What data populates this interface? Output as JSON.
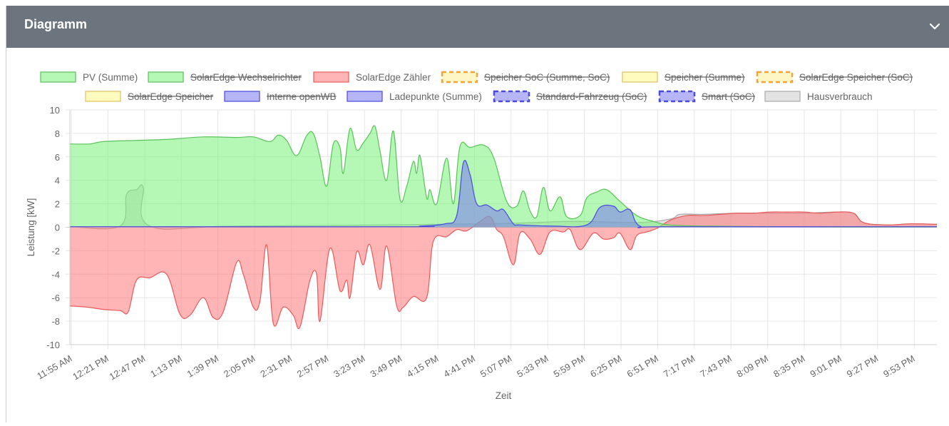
{
  "header": {
    "title": "Diagramm"
  },
  "chart_data": {
    "type": "area",
    "xlabel": "Zeit",
    "ylabel": "Leistung [kW]",
    "ylim": [
      -10,
      10
    ],
    "yticks": [
      10,
      8,
      6,
      4,
      2,
      0,
      -2,
      -4,
      -6,
      -8,
      -10
    ],
    "x_tick_labels": [
      "11:55 AM",
      "12:21 PM",
      "12:47 PM",
      "1:13 PM",
      "1:39 PM",
      "2:05 PM",
      "2:31 PM",
      "2:57 PM",
      "3:23 PM",
      "3:49 PM",
      "4:15 PM",
      "4:41 PM",
      "5:07 PM",
      "5:33 PM",
      "5:59 PM",
      "6:25 PM",
      "6:51 PM",
      "7:17 PM",
      "7:43 PM",
      "8:09 PM",
      "8:35 PM",
      "9:01 PM",
      "9:27 PM",
      "9:53 PM"
    ],
    "x_minutes": [
      0,
      10,
      20,
      30,
      35,
      40,
      45,
      50,
      60,
      70,
      75,
      80,
      90,
      95,
      100,
      105,
      108,
      110,
      114,
      118,
      122,
      126,
      130,
      132,
      136,
      138,
      140,
      142,
      144,
      146,
      148,
      152,
      154,
      156,
      158,
      162,
      164,
      166,
      168,
      170,
      172,
      174,
      176,
      178,
      180,
      183,
      186,
      190,
      192,
      194,
      196,
      198,
      201,
      204,
      206,
      208,
      212,
      216,
      218,
      220,
      222,
      226,
      230,
      236,
      240,
      244,
      248,
      252,
      256,
      258,
      260,
      262,
      264,
      268,
      270,
      272,
      274,
      276,
      278,
      280,
      284,
      288,
      292,
      296,
      300,
      310,
      320,
      330,
      340,
      350,
      360,
      370,
      380,
      390,
      400,
      410,
      420,
      430,
      440,
      450,
      460,
      470,
      480,
      490,
      500,
      510,
      520,
      530,
      540,
      550,
      560,
      570,
      580,
      590,
      600,
      610,
      620,
      630,
      640,
      650,
      660,
      670,
      680,
      690,
      700,
      710,
      720,
      730,
      740,
      750,
      760,
      770,
      780,
      790,
      800,
      810,
      820,
      830,
      840,
      850,
      860,
      870,
      880,
      890,
      900,
      910,
      920,
      930,
      940,
      950,
      960,
      970,
      980,
      990,
      1000,
      1010,
      1020,
      1030,
      1040,
      1050,
      1060,
      1070,
      1080,
      1090,
      1100,
      1110,
      1120,
      1130,
      1140,
      1150,
      1160,
      1170,
      1180,
      1190,
      1200,
      1210,
      1220,
      1230,
      1240,
      1250,
      1260,
      1270,
      1280,
      1290,
      1300,
      1310,
      1320,
      1330,
      1340,
      1350,
      1360,
      1370,
      1380,
      1390,
      1400,
      1410,
      1420,
      1430,
      1440,
      1450,
      1460,
      1470,
      1480,
      1490,
      1500,
      1510,
      1520,
      1530,
      1540,
      1550,
      1560,
      1570,
      1580,
      1590,
      1600,
      1610,
      1620,
      1630,
      1640,
      1650,
      1660,
      1670,
      1680,
      1690,
      1700,
      1710,
      1720,
      1730,
      1740,
      1750,
      1760,
      1770,
      1780,
      1790,
      1800,
      1810,
      1820,
      1830,
      1840,
      1850,
      1860,
      1870,
      1880,
      1890,
      1900,
      1910,
      1920,
      1930,
      1940,
      1950,
      1960,
      1970,
      1980,
      1990,
      2000,
      2010,
      2020,
      2030,
      2040,
      2050,
      2060,
      2070,
      2080,
      2090,
      2100,
      2110,
      2120,
      2130,
      2140,
      2150,
      2160,
      2170,
      2180,
      2190,
      2200,
      2210,
      2220,
      2230,
      2240,
      2250,
      2260,
      2270,
      2280,
      2290,
      2300,
      2310,
      2320,
      2330,
      2340,
      2350,
      2360,
      2370,
      2380,
      2390,
      2400,
      2410,
      2420,
      2430,
      2440,
      2450,
      2460,
      2470,
      2480,
      2490,
      2500,
      2510,
      2520,
      2530,
      2540,
      2550,
      2560,
      2570,
      2580,
      2590,
      2600,
      2610,
      2620
    ],
    "series": [
      {
        "name": "PV (Summe)",
        "color": "#5ac25a",
        "fill": "rgba(120,240,120,0.55)",
        "hidden": false,
        "style": "solid",
        "points": [
          [
            0,
            7.1
          ],
          [
            12,
            7.1
          ],
          [
            20,
            7.3
          ],
          [
            40,
            7.4
          ],
          [
            60,
            7.5
          ],
          [
            80,
            7.7
          ],
          [
            100,
            7.65
          ],
          [
            110,
            7.7
          ],
          [
            120,
            7.3
          ],
          [
            125,
            7.85
          ],
          [
            130,
            7.4
          ],
          [
            136,
            6.1
          ],
          [
            142,
            7.8
          ],
          [
            146,
            8.0
          ],
          [
            150,
            6.0
          ],
          [
            154,
            3.5
          ],
          [
            158,
            7.1
          ],
          [
            162,
            6.8
          ],
          [
            164,
            4.6
          ],
          [
            168,
            8.4
          ],
          [
            172,
            6.6
          ],
          [
            176,
            7.2
          ],
          [
            180,
            8.0
          ],
          [
            183,
            8.6
          ],
          [
            186,
            6.5
          ],
          [
            190,
            4.0
          ],
          [
            194,
            8.2
          ],
          [
            198,
            2.4
          ],
          [
            202,
            3.5
          ],
          [
            206,
            5.6
          ],
          [
            208,
            4.6
          ],
          [
            210,
            6.1
          ],
          [
            214,
            2.5
          ],
          [
            216,
            3.2
          ],
          [
            220,
            2.0
          ],
          [
            226,
            5.9
          ],
          [
            230,
            2.0
          ],
          [
            234,
            6.9
          ],
          [
            240,
            6.8
          ],
          [
            248,
            7.0
          ],
          [
            254,
            6.0
          ],
          [
            262,
            2.2
          ],
          [
            268,
            1.8
          ],
          [
            272,
            3.1
          ],
          [
            276,
            1.4
          ],
          [
            280,
            0.9
          ],
          [
            284,
            3.4
          ],
          [
            288,
            1.4
          ],
          [
            294,
            2.6
          ],
          [
            298,
            0.9
          ],
          [
            306,
            1.0
          ],
          [
            310,
            2.5
          ],
          [
            316,
            3.0
          ],
          [
            322,
            3.2
          ],
          [
            330,
            2.2
          ],
          [
            340,
            1.0
          ],
          [
            350,
            0.5
          ],
          [
            360,
            0.2
          ],
          [
            380,
            0.1
          ],
          [
            420,
            0.05
          ],
          [
            480,
            0.02
          ],
          [
            520,
            0.02
          ]
        ]
      },
      {
        "name": "SolarEdge Wechselrichter",
        "color": "#5ac25a",
        "fill": "rgba(120,240,120,0.55)",
        "hidden": true,
        "style": "solid",
        "points": []
      },
      {
        "name": "SolarEdge Zähler",
        "color": "#e85a5a",
        "fill": "rgba(255,120,120,0.55)",
        "hidden": false,
        "style": "solid",
        "points": [
          [
            0,
            -6.7
          ],
          [
            10,
            -6.8
          ],
          [
            20,
            -7.0
          ],
          [
            30,
            -7.1
          ],
          [
            35,
            -7.2
          ],
          [
            40,
            -4.5
          ],
          [
            48,
            -4.3
          ],
          [
            58,
            -4.0
          ],
          [
            66,
            -7.4
          ],
          [
            72,
            -7.5
          ],
          [
            80,
            -6.0
          ],
          [
            86,
            -7.7
          ],
          [
            92,
            -7.2
          ],
          [
            100,
            -3.0
          ],
          [
            104,
            -4.0
          ],
          [
            110,
            -6.8
          ],
          [
            114,
            -6.3
          ],
          [
            118,
            -1.5
          ],
          [
            122,
            -8.2
          ],
          [
            128,
            -6.8
          ],
          [
            134,
            -7.5
          ],
          [
            138,
            -8.5
          ],
          [
            144,
            -4.5
          ],
          [
            148,
            -4.0
          ],
          [
            150,
            -8.0
          ],
          [
            156,
            -1.8
          ],
          [
            162,
            -5.4
          ],
          [
            166,
            -4.5
          ],
          [
            168,
            -6.0
          ],
          [
            172,
            -2.1
          ],
          [
            176,
            -3.2
          ],
          [
            180,
            -1.5
          ],
          [
            186,
            -5.3
          ],
          [
            190,
            -1.6
          ],
          [
            196,
            -6.7
          ],
          [
            200,
            -6.8
          ],
          [
            206,
            -5.9
          ],
          [
            214,
            -6.0
          ],
          [
            218,
            -1.2
          ],
          [
            226,
            -0.8
          ],
          [
            232,
            -0.2
          ],
          [
            238,
            -0.3
          ],
          [
            246,
            0.5
          ],
          [
            252,
            0.9
          ],
          [
            256,
            -0.2
          ],
          [
            260,
            -0.8
          ],
          [
            266,
            -3.2
          ],
          [
            270,
            -0.5
          ],
          [
            276,
            -1.0
          ],
          [
            282,
            -2.3
          ],
          [
            288,
            -0.4
          ],
          [
            296,
            -0.4
          ],
          [
            300,
            -0.2
          ],
          [
            306,
            -1.9
          ],
          [
            314,
            -0.5
          ],
          [
            320,
            -1.0
          ],
          [
            326,
            -0.9
          ],
          [
            330,
            -0.5
          ],
          [
            336,
            -1.9
          ],
          [
            340,
            -0.7
          ],
          [
            346,
            -0.4
          ],
          [
            352,
            -0.1
          ],
          [
            360,
            0.6
          ],
          [
            370,
            1.0
          ],
          [
            380,
            1.0
          ],
          [
            390,
            1.1
          ],
          [
            400,
            1.2
          ],
          [
            410,
            1.2
          ],
          [
            420,
            1.3
          ],
          [
            430,
            1.3
          ],
          [
            440,
            1.3
          ],
          [
            450,
            1.2
          ],
          [
            460,
            1.3
          ],
          [
            470,
            1.2
          ],
          [
            476,
            0.4
          ],
          [
            490,
            0.2
          ],
          [
            505,
            0.3
          ],
          [
            520,
            0.25
          ]
        ]
      },
      {
        "name": "Speicher SoC (Summe, SoC)",
        "color": "#f2a33a",
        "fill": "rgba(255,240,160,0.6)",
        "hidden": true,
        "style": "dashed",
        "points": []
      },
      {
        "name": "Speicher (Summe)",
        "color": "#e0c060",
        "fill": "rgba(255,250,170,0.75)",
        "hidden": true,
        "style": "solid",
        "points": []
      },
      {
        "name": "SolarEdge Speicher (SoC)",
        "color": "#f2a33a",
        "fill": "rgba(255,240,160,0.6)",
        "hidden": true,
        "style": "dashed",
        "points": []
      },
      {
        "name": "SolarEdge Speicher",
        "color": "#e0c060",
        "fill": "rgba(255,250,170,0.75)",
        "hidden": true,
        "style": "solid",
        "points": []
      },
      {
        "name": "Interne openWB",
        "color": "#4a4ae0",
        "fill": "rgba(120,120,240,0.55)",
        "hidden": true,
        "style": "solid",
        "points": []
      },
      {
        "name": "Ladepunkte (Summe)",
        "color": "#4a4ae0",
        "fill": "rgba(120,120,240,0.55)",
        "hidden": false,
        "style": "solid",
        "points": [
          [
            0,
            0.05
          ],
          [
            200,
            0.05
          ],
          [
            210,
            0.1
          ],
          [
            225,
            0.3
          ],
          [
            232,
            1.0
          ],
          [
            236,
            5.5
          ],
          [
            240,
            4.5
          ],
          [
            244,
            2.0
          ],
          [
            250,
            1.9
          ],
          [
            256,
            1.4
          ],
          [
            260,
            1.5
          ],
          [
            266,
            0.3
          ],
          [
            270,
            0.2
          ],
          [
            290,
            0.1
          ],
          [
            310,
            0.2
          ],
          [
            318,
            1.7
          ],
          [
            326,
            1.8
          ],
          [
            330,
            1.3
          ],
          [
            336,
            1.5
          ],
          [
            342,
            0.1
          ],
          [
            360,
            0.05
          ],
          [
            520,
            0.05
          ]
        ]
      },
      {
        "name": "Standard-Fahrzeug (SoC)",
        "color": "#4a4ae0",
        "fill": "rgba(120,120,240,0.55)",
        "hidden": true,
        "style": "dashed",
        "points": []
      },
      {
        "name": "Smart (SoC)",
        "color": "#4a4ae0",
        "fill": "rgba(120,120,240,0.55)",
        "hidden": true,
        "style": "dashed",
        "points": []
      },
      {
        "name": "Hausverbrauch",
        "color": "#a8a8a8",
        "fill": "rgba(200,200,200,0.5)",
        "hidden": false,
        "style": "solid",
        "points": [
          [
            0,
            0.05
          ],
          [
            30,
            0.1
          ],
          [
            34,
            2.8
          ],
          [
            40,
            3.2
          ],
          [
            44,
            3.4
          ],
          [
            48,
            0.1
          ],
          [
            100,
            0.1
          ],
          [
            250,
            0.3
          ],
          [
            300,
            0.5
          ],
          [
            340,
            0.4
          ],
          [
            360,
            0.7
          ],
          [
            366,
            1.1
          ],
          [
            380,
            1.1
          ],
          [
            400,
            1.2
          ],
          [
            420,
            1.2
          ],
          [
            440,
            1.2
          ],
          [
            460,
            1.3
          ],
          [
            470,
            1.2
          ],
          [
            476,
            0.4
          ],
          [
            490,
            0.2
          ],
          [
            505,
            0.3
          ],
          [
            520,
            0.25
          ]
        ]
      }
    ]
  }
}
